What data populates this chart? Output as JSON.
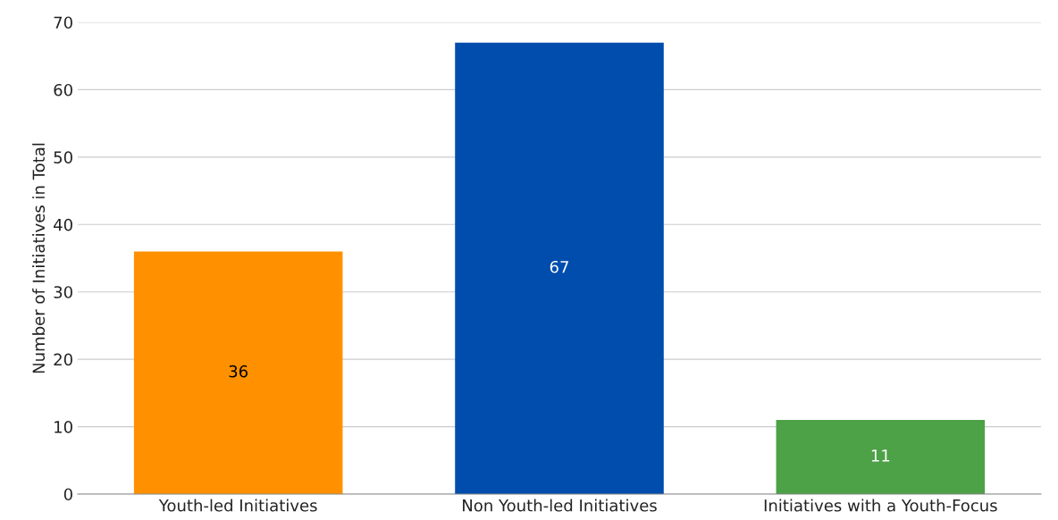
{
  "chart_data": {
    "type": "bar",
    "ylabel": "Number of Initiatives in Total",
    "categories": [
      "Youth-led Initiatives",
      "Non Youth-led Initiatives",
      "Initiatives with a Youth-Focus"
    ],
    "values": [
      36,
      67,
      11
    ],
    "colors": [
      "#ff9100",
      "#014dae",
      "#4da146"
    ],
    "ylim": [
      0,
      70
    ],
    "yticks": [
      0,
      10,
      20,
      30,
      40,
      50,
      60,
      70
    ],
    "grid": "y",
    "data_labels": true
  }
}
